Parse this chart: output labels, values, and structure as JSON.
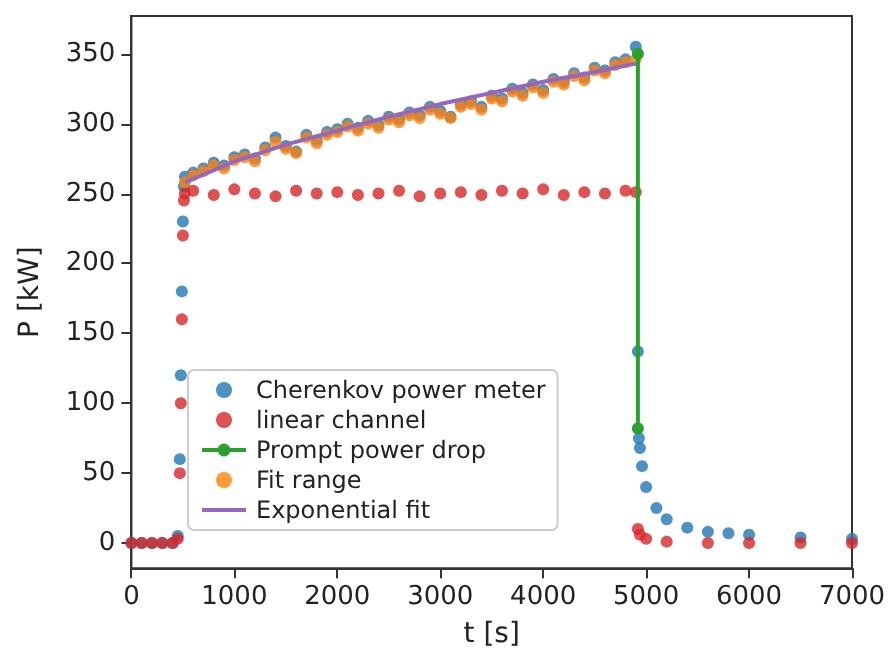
{
  "chart_data": {
    "type": "scatter",
    "xlabel": "t [s]",
    "ylabel": "P [kW]",
    "xlim": [
      0,
      7000
    ],
    "xticks": [
      0,
      1000,
      2000,
      3000,
      4000,
      5000,
      6000,
      7000
    ],
    "ylim": [
      -18,
      377
    ],
    "yticks": [
      0,
      50,
      100,
      150,
      200,
      250,
      300,
      350
    ],
    "grid": false,
    "legend": "bottom left",
    "series": [
      {
        "name": "Cherenkov power meter",
        "marker": "circle",
        "color": "#1f77b4",
        "x": [
          0,
          100,
          200,
          300,
          400,
          450,
          470,
          480,
          490,
          500,
          510,
          520,
          600,
          700,
          800,
          900,
          1000,
          1100,
          1200,
          1300,
          1400,
          1500,
          1600,
          1700,
          1800,
          1900,
          2000,
          2100,
          2200,
          2300,
          2400,
          2500,
          2600,
          2700,
          2800,
          2900,
          3000,
          3100,
          3200,
          3300,
          3400,
          3500,
          3600,
          3700,
          3800,
          3900,
          4000,
          4100,
          4200,
          4300,
          4400,
          4500,
          4600,
          4700,
          4800,
          4900,
          4920,
          4930,
          4940,
          4960,
          5000,
          5100,
          5200,
          5400,
          5600,
          5800,
          6000,
          6500,
          7000
        ],
        "values": [
          0,
          0,
          0,
          0,
          0,
          5,
          60,
          120,
          180,
          230,
          255,
          262,
          265,
          268,
          272,
          270,
          276,
          278,
          275,
          283,
          290,
          284,
          280,
          292,
          288,
          294,
          296,
          300,
          297,
          302,
          299,
          305,
          303,
          308,
          306,
          312,
          309,
          305,
          314,
          316,
          312,
          320,
          318,
          325,
          322,
          328,
          324,
          332,
          330,
          336,
          333,
          340,
          338,
          344,
          346,
          355,
          137,
          75,
          68,
          55,
          40,
          25,
          17,
          11,
          8,
          7,
          6,
          4,
          3
        ]
      },
      {
        "name": "linear channel",
        "marker": "circle",
        "color": "#d62728",
        "x": [
          0,
          100,
          200,
          300,
          400,
          450,
          470,
          480,
          490,
          500,
          510,
          520,
          600,
          800,
          1000,
          1200,
          1400,
          1600,
          1800,
          2000,
          2200,
          2400,
          2600,
          2800,
          3000,
          3200,
          3400,
          3600,
          3800,
          4000,
          4200,
          4400,
          4600,
          4800,
          4900,
          4920,
          4940,
          5000,
          5200,
          5600,
          6000,
          6500,
          7000
        ],
        "values": [
          0,
          0,
          0,
          0,
          0,
          3,
          50,
          100,
          160,
          220,
          245,
          250,
          252,
          249,
          253,
          250,
          248,
          252,
          250,
          251,
          249,
          250,
          252,
          248,
          250,
          251,
          249,
          252,
          250,
          253,
          249,
          251,
          250,
          252,
          251,
          10,
          6,
          3,
          1,
          0,
          0,
          0,
          0
        ]
      },
      {
        "name": "Prompt power drop",
        "type": "line",
        "marker": "circle",
        "color": "#2ca02c",
        "x": [
          4920,
          4920
        ],
        "values": [
          350,
          82
        ]
      },
      {
        "name": "Fit range",
        "marker": "circle",
        "color": "#ff7f0e",
        "x": [
          520,
          600,
          700,
          800,
          900,
          1000,
          1100,
          1200,
          1300,
          1400,
          1500,
          1600,
          1700,
          1800,
          1900,
          2000,
          2100,
          2200,
          2300,
          2400,
          2500,
          2600,
          2700,
          2800,
          2900,
          3000,
          3100,
          3200,
          3300,
          3400,
          3500,
          3600,
          3700,
          3800,
          3900,
          4000,
          4100,
          4200,
          4300,
          4400,
          4500,
          4600,
          4700,
          4800,
          4900
        ],
        "values": [
          258,
          263,
          266,
          270,
          268,
          274,
          276,
          273,
          281,
          287,
          282,
          279,
          290,
          286,
          292,
          294,
          298,
          295,
          300,
          297,
          303,
          301,
          306,
          304,
          310,
          307,
          304,
          312,
          314,
          310,
          318,
          316,
          323,
          320,
          326,
          322,
          330,
          328,
          334,
          331,
          338,
          336,
          342,
          344,
          346
        ]
      },
      {
        "name": "Exponential fit",
        "type": "line",
        "marker": "none",
        "color": "#9467bd",
        "x": [
          520,
          1000,
          1500,
          2000,
          2500,
          3000,
          3500,
          4000,
          4500,
          4900
        ],
        "values": [
          258,
          273,
          285,
          295,
          305,
          314,
          322,
          330,
          337,
          343
        ]
      }
    ]
  }
}
